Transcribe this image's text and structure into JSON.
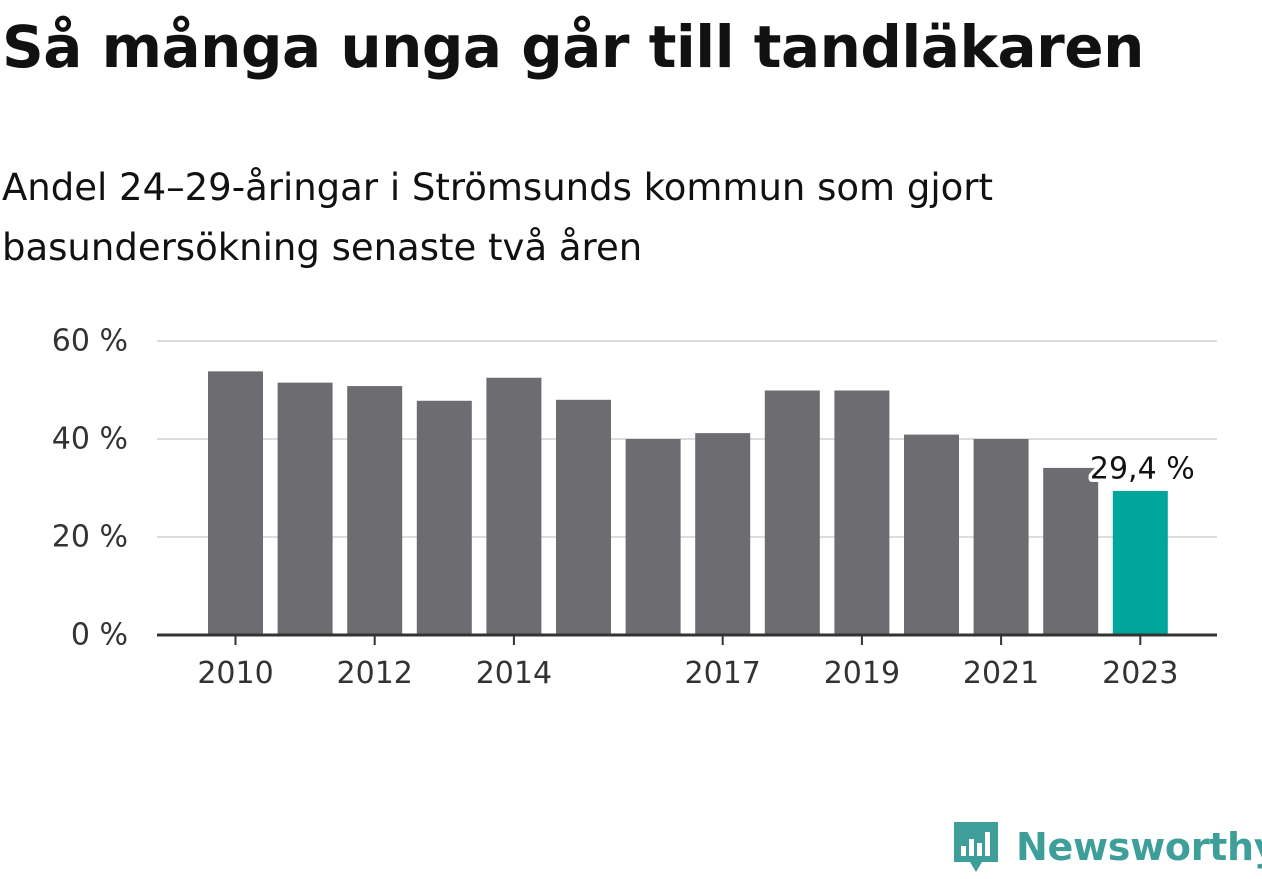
{
  "header": {
    "title": "Så många unga går till tandläkaren",
    "subtitle": "Andel 24–29-åringar i Strömsunds kommun som gjort basundersökning senaste två åren"
  },
  "chart_data": {
    "type": "bar",
    "categories": [
      "2010",
      "2011",
      "2012",
      "2013",
      "2014",
      "2015",
      "2016",
      "2017",
      "2018",
      "2019",
      "2020",
      "2021",
      "2022",
      "2023"
    ],
    "values": [
      53.8,
      51.5,
      50.8,
      47.8,
      52.5,
      48.0,
      40.0,
      41.2,
      49.9,
      49.9,
      40.9,
      40.0,
      34.1,
      29.4
    ],
    "x_tick_labels": [
      "2010",
      "2012",
      "2014",
      "2017",
      "2019",
      "2021",
      "2023"
    ],
    "y_ticks": [
      0,
      20,
      40,
      60
    ],
    "y_tick_labels": [
      "0 %",
      "20 %",
      "40 %",
      "60 %"
    ],
    "ylim": [
      0,
      60
    ],
    "grid": true,
    "highlight_index": 13,
    "highlight_label": "29,4 %",
    "colors": {
      "bar": "#6d6c71",
      "highlight": "#00a59b",
      "grid": "#dddddd",
      "axis": "#333333"
    }
  },
  "branding": {
    "name": "Newsworthy",
    "icon": "newsworthy-logo-icon",
    "color": "#3e9f9a"
  }
}
